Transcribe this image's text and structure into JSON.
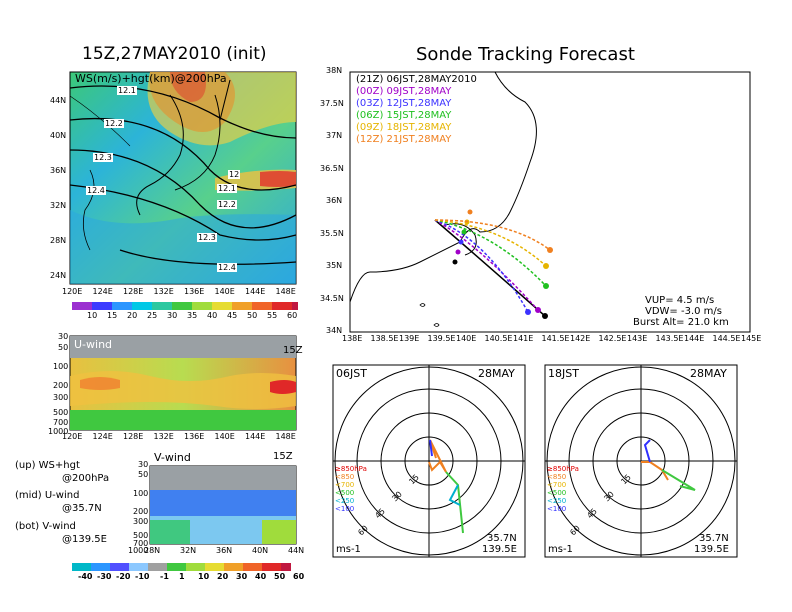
{
  "left_title": "15Z,27MAY2010 (init)",
  "right_title": "Sonde Tracking Forecast",
  "ws_panel": {
    "label": "WS(m/s)+hgt(km)@200hPa",
    "lat_ticks": [
      "44N",
      "40N",
      "36N",
      "32N",
      "28N",
      "24N"
    ],
    "lon_ticks": [
      "120E",
      "124E",
      "128E",
      "132E",
      "136E",
      "140E",
      "144E",
      "148E"
    ],
    "contour_labels": [
      "12.1",
      "12.2",
      "12.3",
      "12.4",
      "12",
      "12.1",
      "12.2",
      "12.3",
      "12.4"
    ],
    "colorbar_labels": [
      "10",
      "15",
      "20",
      "25",
      "30",
      "35",
      "40",
      "45",
      "50",
      "55",
      "60"
    ]
  },
  "u_panel": {
    "label": "U-wind",
    "time": "15Z",
    "p_ticks": [
      "30",
      "50",
      "100",
      "200",
      "300",
      "500",
      "700",
      "1000"
    ],
    "lon_ticks": [
      "120E",
      "124E",
      "128E",
      "132E",
      "136E",
      "140E",
      "144E",
      "148E"
    ]
  },
  "v_panel": {
    "label": "V-wind",
    "time": "15Z",
    "p_ticks": [
      "30",
      "50",
      "100",
      "200",
      "300",
      "500",
      "700",
      "1000"
    ],
    "lat_ticks": [
      "28N",
      "32N",
      "36N",
      "40N",
      "44N"
    ]
  },
  "legend_text": {
    "up_a": "(up) WS+hgt",
    "up_b": "@200hPa",
    "mid_a": "(mid) U-wind",
    "mid_b": "@35.7N",
    "bot_a": "(bot) V-wind",
    "bot_b": "@139.5E"
  },
  "bottom_colorbar_labels": [
    "-40",
    "-30",
    "-20",
    "-10",
    "-1",
    "1",
    "10",
    "20",
    "30",
    "40",
    "50",
    "60"
  ],
  "track_map": {
    "lat_ticks": [
      "38N",
      "37.5N",
      "37N",
      "36.5N",
      "36N",
      "35.5N",
      "35N",
      "34.5N",
      "34N"
    ],
    "lon_ticks": [
      "138E",
      "138.5E",
      "139E",
      "139.5E",
      "140E",
      "140.5E",
      "141E",
      "141.5E",
      "142E",
      "142.5E",
      "143E",
      "143.5E",
      "144E",
      "144.5E",
      "145E"
    ],
    "legend": [
      {
        "text": "(21Z)  06JST,28MAY2010",
        "color": "#000000"
      },
      {
        "text": "(00Z)  09JST,28MAY",
        "color": "#a000c8"
      },
      {
        "text": "(03Z)  12JST,28MAY",
        "color": "#3c32ff"
      },
      {
        "text": "(06Z)  15JST,28MAY",
        "color": "#20c020"
      },
      {
        "text": "(09Z)  18JST,28MAY",
        "color": "#e6b400"
      },
      {
        "text": "(12Z)  21JST,28MAY",
        "color": "#f08020"
      }
    ],
    "vup": "VUP=  4.5 m/s",
    "vdw": "VDW= -3.0 m/s",
    "burst": "Burst Alt= 21.0 km"
  },
  "hodo_left": {
    "time": "06JST",
    "date": "28MAY",
    "lat": "35.7N",
    "lon": "139.5E",
    "unit": "ms-1",
    "rings": [
      "15",
      "30",
      "45",
      "60"
    ]
  },
  "hodo_right": {
    "time": "18JST",
    "date": "28MAY",
    "lat": "35.7N",
    "lon": "139.5E",
    "unit": "ms-1",
    "rings": [
      "15",
      "30",
      "45",
      "60"
    ]
  },
  "hodo_legend": [
    {
      "text": "≥850hPa",
      "color": "#e00000"
    },
    {
      "text": "<850",
      "color": "#f08020"
    },
    {
      "text": "<700",
      "color": "#e6b400"
    },
    {
      "text": "<500",
      "color": "#20c020"
    },
    {
      "text": "<250",
      "color": "#00b0d0"
    },
    {
      "text": "<100",
      "color": "#3030ff"
    }
  ],
  "colors": {
    "ocean": "#ffffff",
    "land_line": "#000000"
  }
}
